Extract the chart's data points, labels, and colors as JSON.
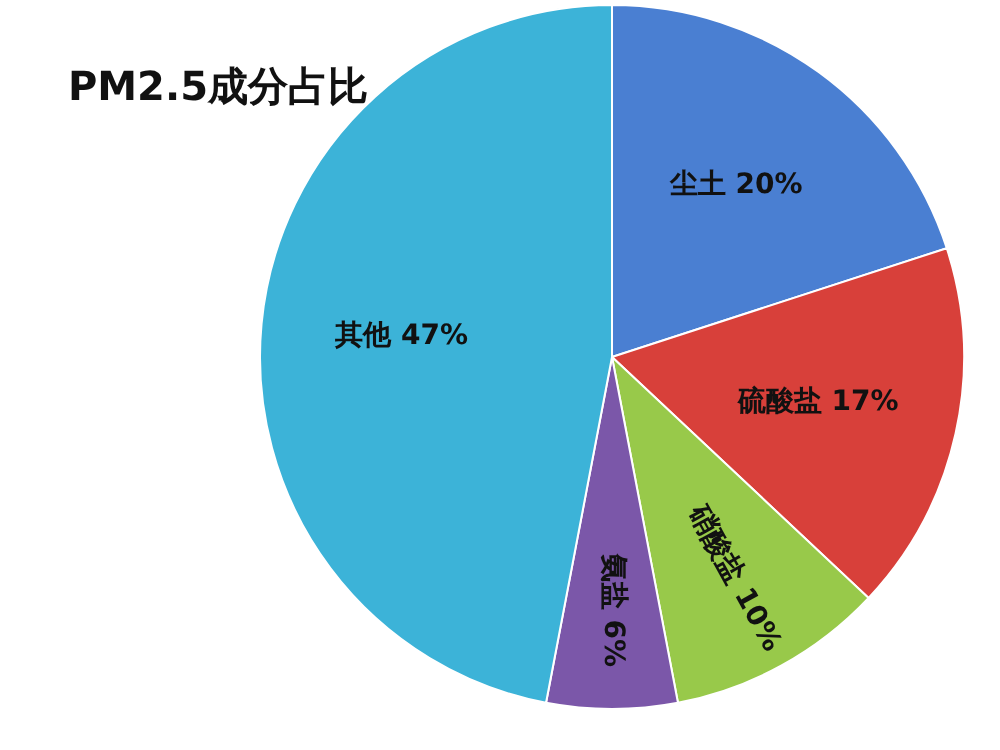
{
  "chart_data": {
    "type": "pie",
    "title": "PM2.5成分占比",
    "categories": [
      "尘土",
      "硫酸盐",
      "硝酸盐",
      "氨盐",
      "其他"
    ],
    "values": [
      20,
      17,
      10,
      6,
      47
    ],
    "value_labels": [
      "20%",
      "17%",
      "10%",
      "6%",
      "47%"
    ],
    "colors": [
      "#4a7fd2",
      "#d8403a",
      "#98c94a",
      "#7b57a9",
      "#3cb3d8"
    ],
    "legend": false
  }
}
